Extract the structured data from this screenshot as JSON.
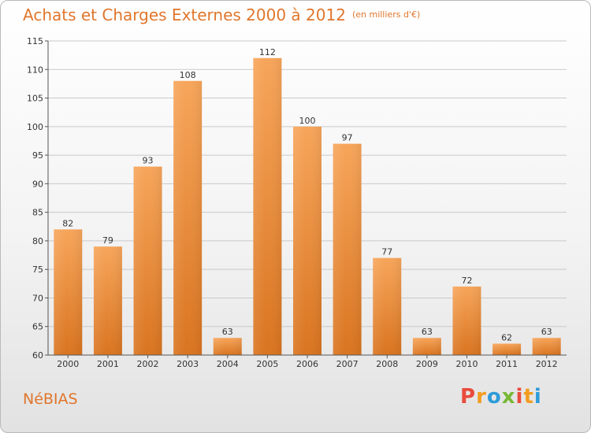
{
  "header": {
    "title": "Achats et Charges Externes 2000 à 2012",
    "unit": "(en milliers d'€)"
  },
  "footer": {
    "commune": "NéBIAS",
    "logo_text": "Proxiti",
    "logo_colors": [
      "#e94b3c",
      "#f29c1f",
      "#2d9bd8",
      "#79b837",
      "#e94b3c",
      "#f29c1f",
      "#2d9bd8"
    ]
  },
  "chart_data": {
    "type": "bar",
    "title": "Achats et Charges Externes 2000 à 2012",
    "subtitle": "(en milliers d'€)",
    "categories": [
      "2000",
      "2001",
      "2002",
      "2003",
      "2004",
      "2005",
      "2006",
      "2007",
      "2008",
      "2009",
      "2010",
      "2011",
      "2012"
    ],
    "values": [
      82,
      79,
      93,
      108,
      63,
      112,
      100,
      97,
      77,
      63,
      72,
      62,
      63
    ],
    "ylim": [
      60,
      115
    ],
    "yticks": [
      60,
      65,
      70,
      75,
      80,
      85,
      90,
      95,
      100,
      105,
      110,
      115
    ],
    "grid": "horizontal",
    "bar_color": "#f0913a"
  }
}
